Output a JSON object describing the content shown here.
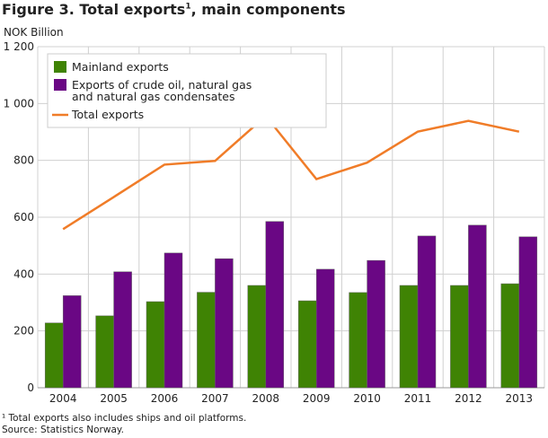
{
  "title": "Figure 3. Total exports",
  "title_sup": "1",
  "title_rest": ", main components",
  "notes": [
    "¹ Total exports also includes ships and oil platforms.",
    "Source: Statistics Norway."
  ],
  "chart_data": {
    "type": "bar",
    "ylabel": "NOK Billion",
    "ylim": [
      0,
      1200
    ],
    "yticks": [
      0,
      200,
      400,
      600,
      800,
      1000,
      1200
    ],
    "ytick_labels": [
      "0",
      "200",
      "400",
      "600",
      "800",
      "1 000",
      "1 200"
    ],
    "grid": true,
    "legend": "top-left",
    "categories": [
      "2004",
      "2005",
      "2006",
      "2007",
      "2008",
      "2009",
      "2010",
      "2011",
      "2012",
      "2013"
    ],
    "series": [
      {
        "name": "Mainland exports",
        "type": "bar",
        "color": "#3f8304",
        "values": [
          228,
          253,
          303,
          336,
          360,
          306,
          335,
          360,
          360,
          366
        ]
      },
      {
        "name": "Exports of crude oil, natural gas and natural gas condensates",
        "legend_lines": [
          "Exports of crude oil, natural gas",
          "and natural gas condensates"
        ],
        "type": "bar",
        "color": "#6a0784",
        "values": [
          324,
          408,
          474,
          454,
          585,
          417,
          448,
          534,
          572,
          531
        ]
      },
      {
        "name": "Total exports",
        "type": "line",
        "color": "#f07c28",
        "values": [
          558,
          671,
          785,
          798,
          956,
          734,
          792,
          901,
          939,
          901
        ]
      }
    ]
  }
}
